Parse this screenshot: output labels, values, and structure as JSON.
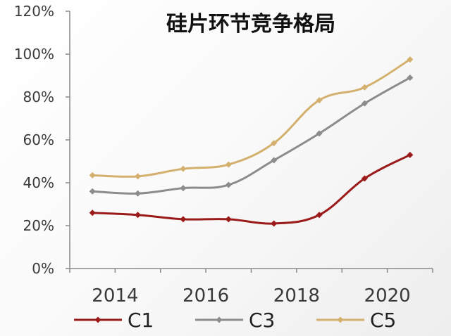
{
  "chart_data": {
    "type": "line",
    "title": "硅片环节竞争格局",
    "xlabel": "",
    "ylabel": "",
    "x": [
      2013.5,
      2014.5,
      2015.5,
      2016.5,
      2017.5,
      2018.5,
      2019.5,
      2020.5
    ],
    "x_ticks": [
      2014,
      2016,
      2018,
      2020
    ],
    "x_tick_labels": [
      "2014",
      "2016",
      "2018",
      "2020"
    ],
    "xlim": [
      2013,
      2021
    ],
    "ylim": [
      0,
      120
    ],
    "y_ticks": [
      0,
      20,
      40,
      60,
      80,
      100,
      120
    ],
    "y_tick_labels": [
      "0%",
      "20%",
      "40%",
      "60%",
      "80%",
      "100%",
      "120%"
    ],
    "grid": false,
    "legend_position": "bottom",
    "series": [
      {
        "name": "C1",
        "color": "#9b1b1b",
        "values": [
          26,
          25,
          23,
          23,
          21,
          25,
          42,
          53
        ]
      },
      {
        "name": "C3",
        "color": "#8c8c8c",
        "values": [
          36,
          35,
          37.5,
          39,
          50.5,
          63,
          77,
          89
        ]
      },
      {
        "name": "C5",
        "color": "#d4b06e",
        "values": [
          43.5,
          43,
          46.5,
          48.5,
          58.5,
          78.5,
          84.5,
          97.5
        ]
      }
    ]
  }
}
